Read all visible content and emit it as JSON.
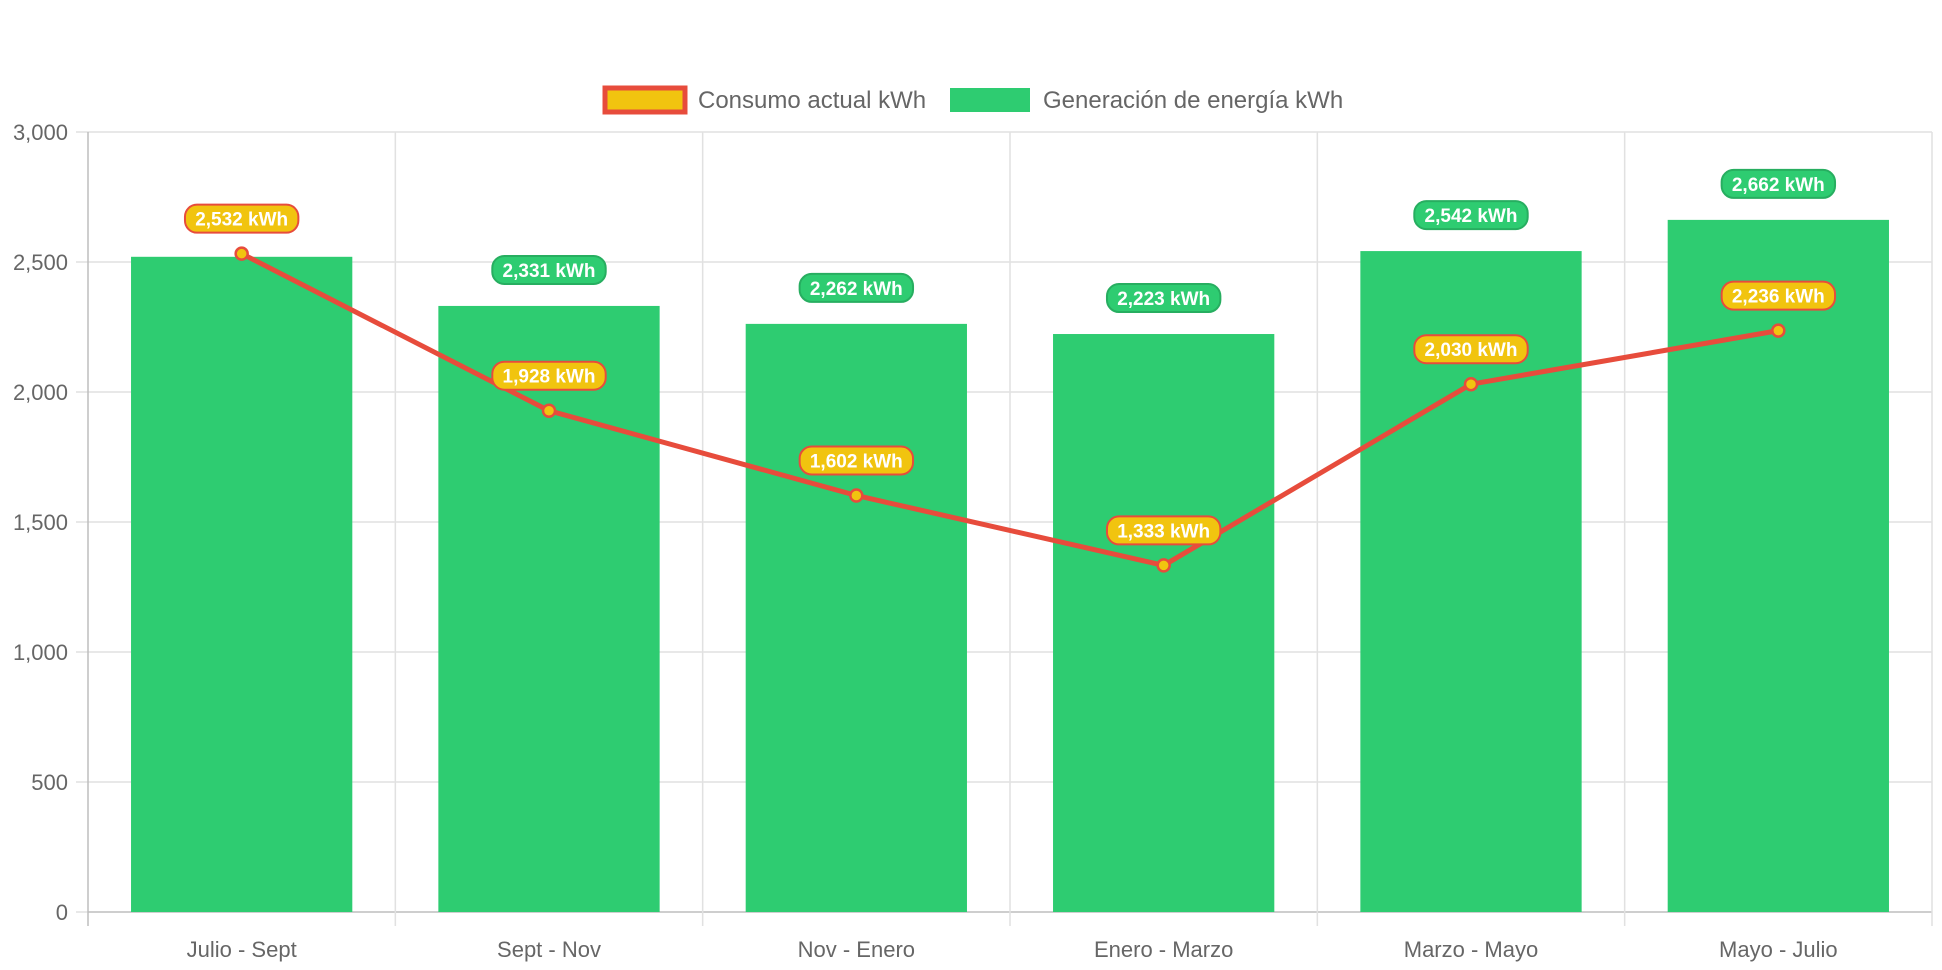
{
  "chart_data": {
    "type": "bar",
    "title": "",
    "xlabel": "",
    "ylabel": "",
    "categories": [
      "Julio - Sept",
      "Sept - Nov",
      "Nov - Enero",
      "Enero - Marzo",
      "Marzo - Mayo",
      "Mayo - Julio"
    ],
    "ylim": [
      0,
      3000
    ],
    "yticks": [
      0,
      500,
      1000,
      1500,
      2000,
      2500,
      3000
    ],
    "ytick_labels": [
      "0",
      "500",
      "1,000",
      "1,500",
      "2,000",
      "2,500",
      "3,000"
    ],
    "grid": true,
    "legend_position": "top-center",
    "series": [
      {
        "name": "Consumo actual kWh",
        "type": "line",
        "values": [
          2532,
          1928,
          1602,
          1333,
          2030,
          2236
        ],
        "labels": [
          "2,532 kWh",
          "1,928 kWh",
          "1,602 kWh",
          "1,333 kWh",
          "2,030 kWh",
          "2,236 kWh"
        ],
        "line_color": "#e74c3c",
        "fill_color": "#f1c40f"
      },
      {
        "name": "Generación de energía kWh",
        "type": "bar",
        "values": [
          2520,
          2331,
          2262,
          2223,
          2542,
          2662
        ],
        "labels": [
          "",
          "2,331 kWh",
          "2,262 kWh",
          "2,223 kWh",
          "2,542 kWh",
          "2,662 kWh"
        ],
        "color": "#2ecc71",
        "label_border": "#27ae60"
      }
    ]
  }
}
